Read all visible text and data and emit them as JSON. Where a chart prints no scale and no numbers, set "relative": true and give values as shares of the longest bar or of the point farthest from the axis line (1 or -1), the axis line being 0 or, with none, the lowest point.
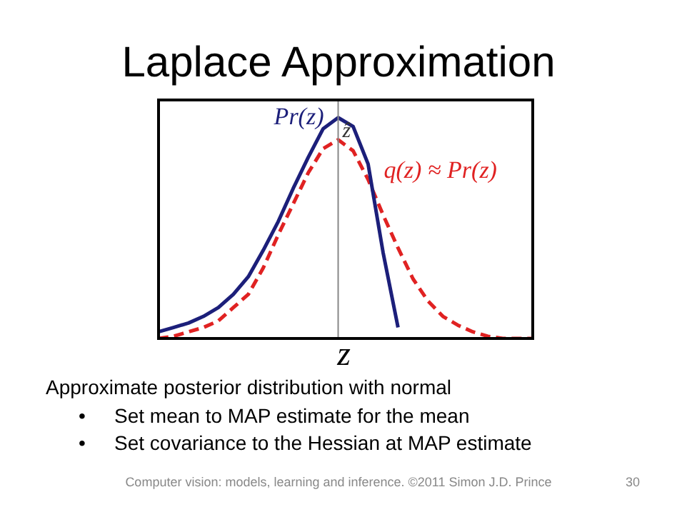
{
  "chart_data": {
    "type": "line",
    "title": "Laplace Approximation",
    "xlabel": "z",
    "relative": true,
    "grid": false,
    "legend": false,
    "marker": "none",
    "categories": [
      null,
      null,
      null,
      null,
      null,
      null,
      null,
      null,
      null,
      null,
      null,
      null,
      null,
      null,
      null,
      null,
      null,
      null,
      null,
      null,
      null,
      null,
      null,
      null,
      null,
      null
    ],
    "series": [
      {
        "name": "Pr(z)",
        "color": "#1c1f7a",
        "line_style": "solid",
        "values": [
          0.03,
          0.05,
          0.07,
          0.1,
          0.14,
          0.2,
          0.28,
          0.4,
          0.53,
          0.68,
          0.82,
          0.95,
          1.0,
          0.96,
          0.79,
          0.39,
          0.05,
          null,
          null,
          null,
          null,
          null,
          null,
          null,
          null,
          null
        ]
      },
      {
        "name": "q(z) ≈ Pr(z)",
        "color": "#e02222",
        "line_style": "dashed",
        "values": [
          0,
          0.01,
          0.03,
          0.05,
          0.08,
          0.14,
          0.2,
          0.32,
          0.47,
          0.61,
          0.75,
          0.86,
          0.9,
          0.85,
          0.72,
          0.56,
          0.41,
          0.27,
          0.17,
          0.1,
          0.06,
          0.03,
          0.01,
          0,
          0,
          0
        ]
      }
    ],
    "annotations": [
      "ẑ",
      "Approximate posterior distribution with normal",
      "•",
      "Set mean to MAP estimate for the mean",
      "•",
      "Set covariance to the Hessian at MAP estimate",
      "Computer vision: models, learning and inference. ©2011 Simon J.D. Prince",
      "30"
    ]
  }
}
